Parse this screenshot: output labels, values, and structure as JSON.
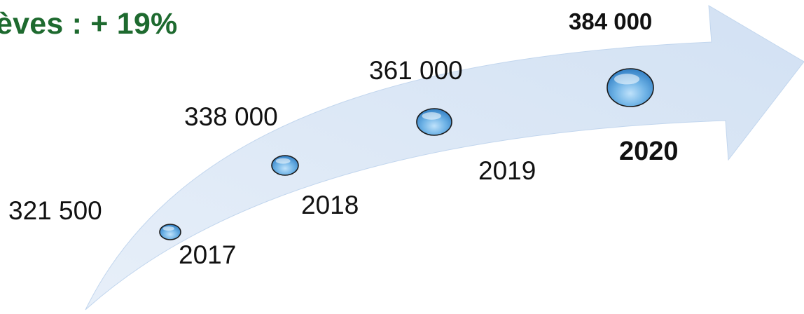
{
  "title": "èves : + 19%",
  "colors": {
    "title": "#1e6a2f",
    "arrow_fill": "#dce8f6",
    "arrow_edge": "#c2d6ee",
    "bubble_fill": "#6fb3e6",
    "bubble_dark": "#3a86c9",
    "bubble_outline": "#1a1a1a"
  },
  "milestones": [
    {
      "year": "2017",
      "value": "321 500",
      "count": 321500,
      "emphasis": false
    },
    {
      "year": "2018",
      "value": "338 000",
      "count": 338000,
      "emphasis": false
    },
    {
      "year": "2019",
      "value": "361 000",
      "count": 361000,
      "emphasis": false
    },
    {
      "year": "2020",
      "value": "384 000",
      "count": 384000,
      "emphasis": true
    }
  ]
}
